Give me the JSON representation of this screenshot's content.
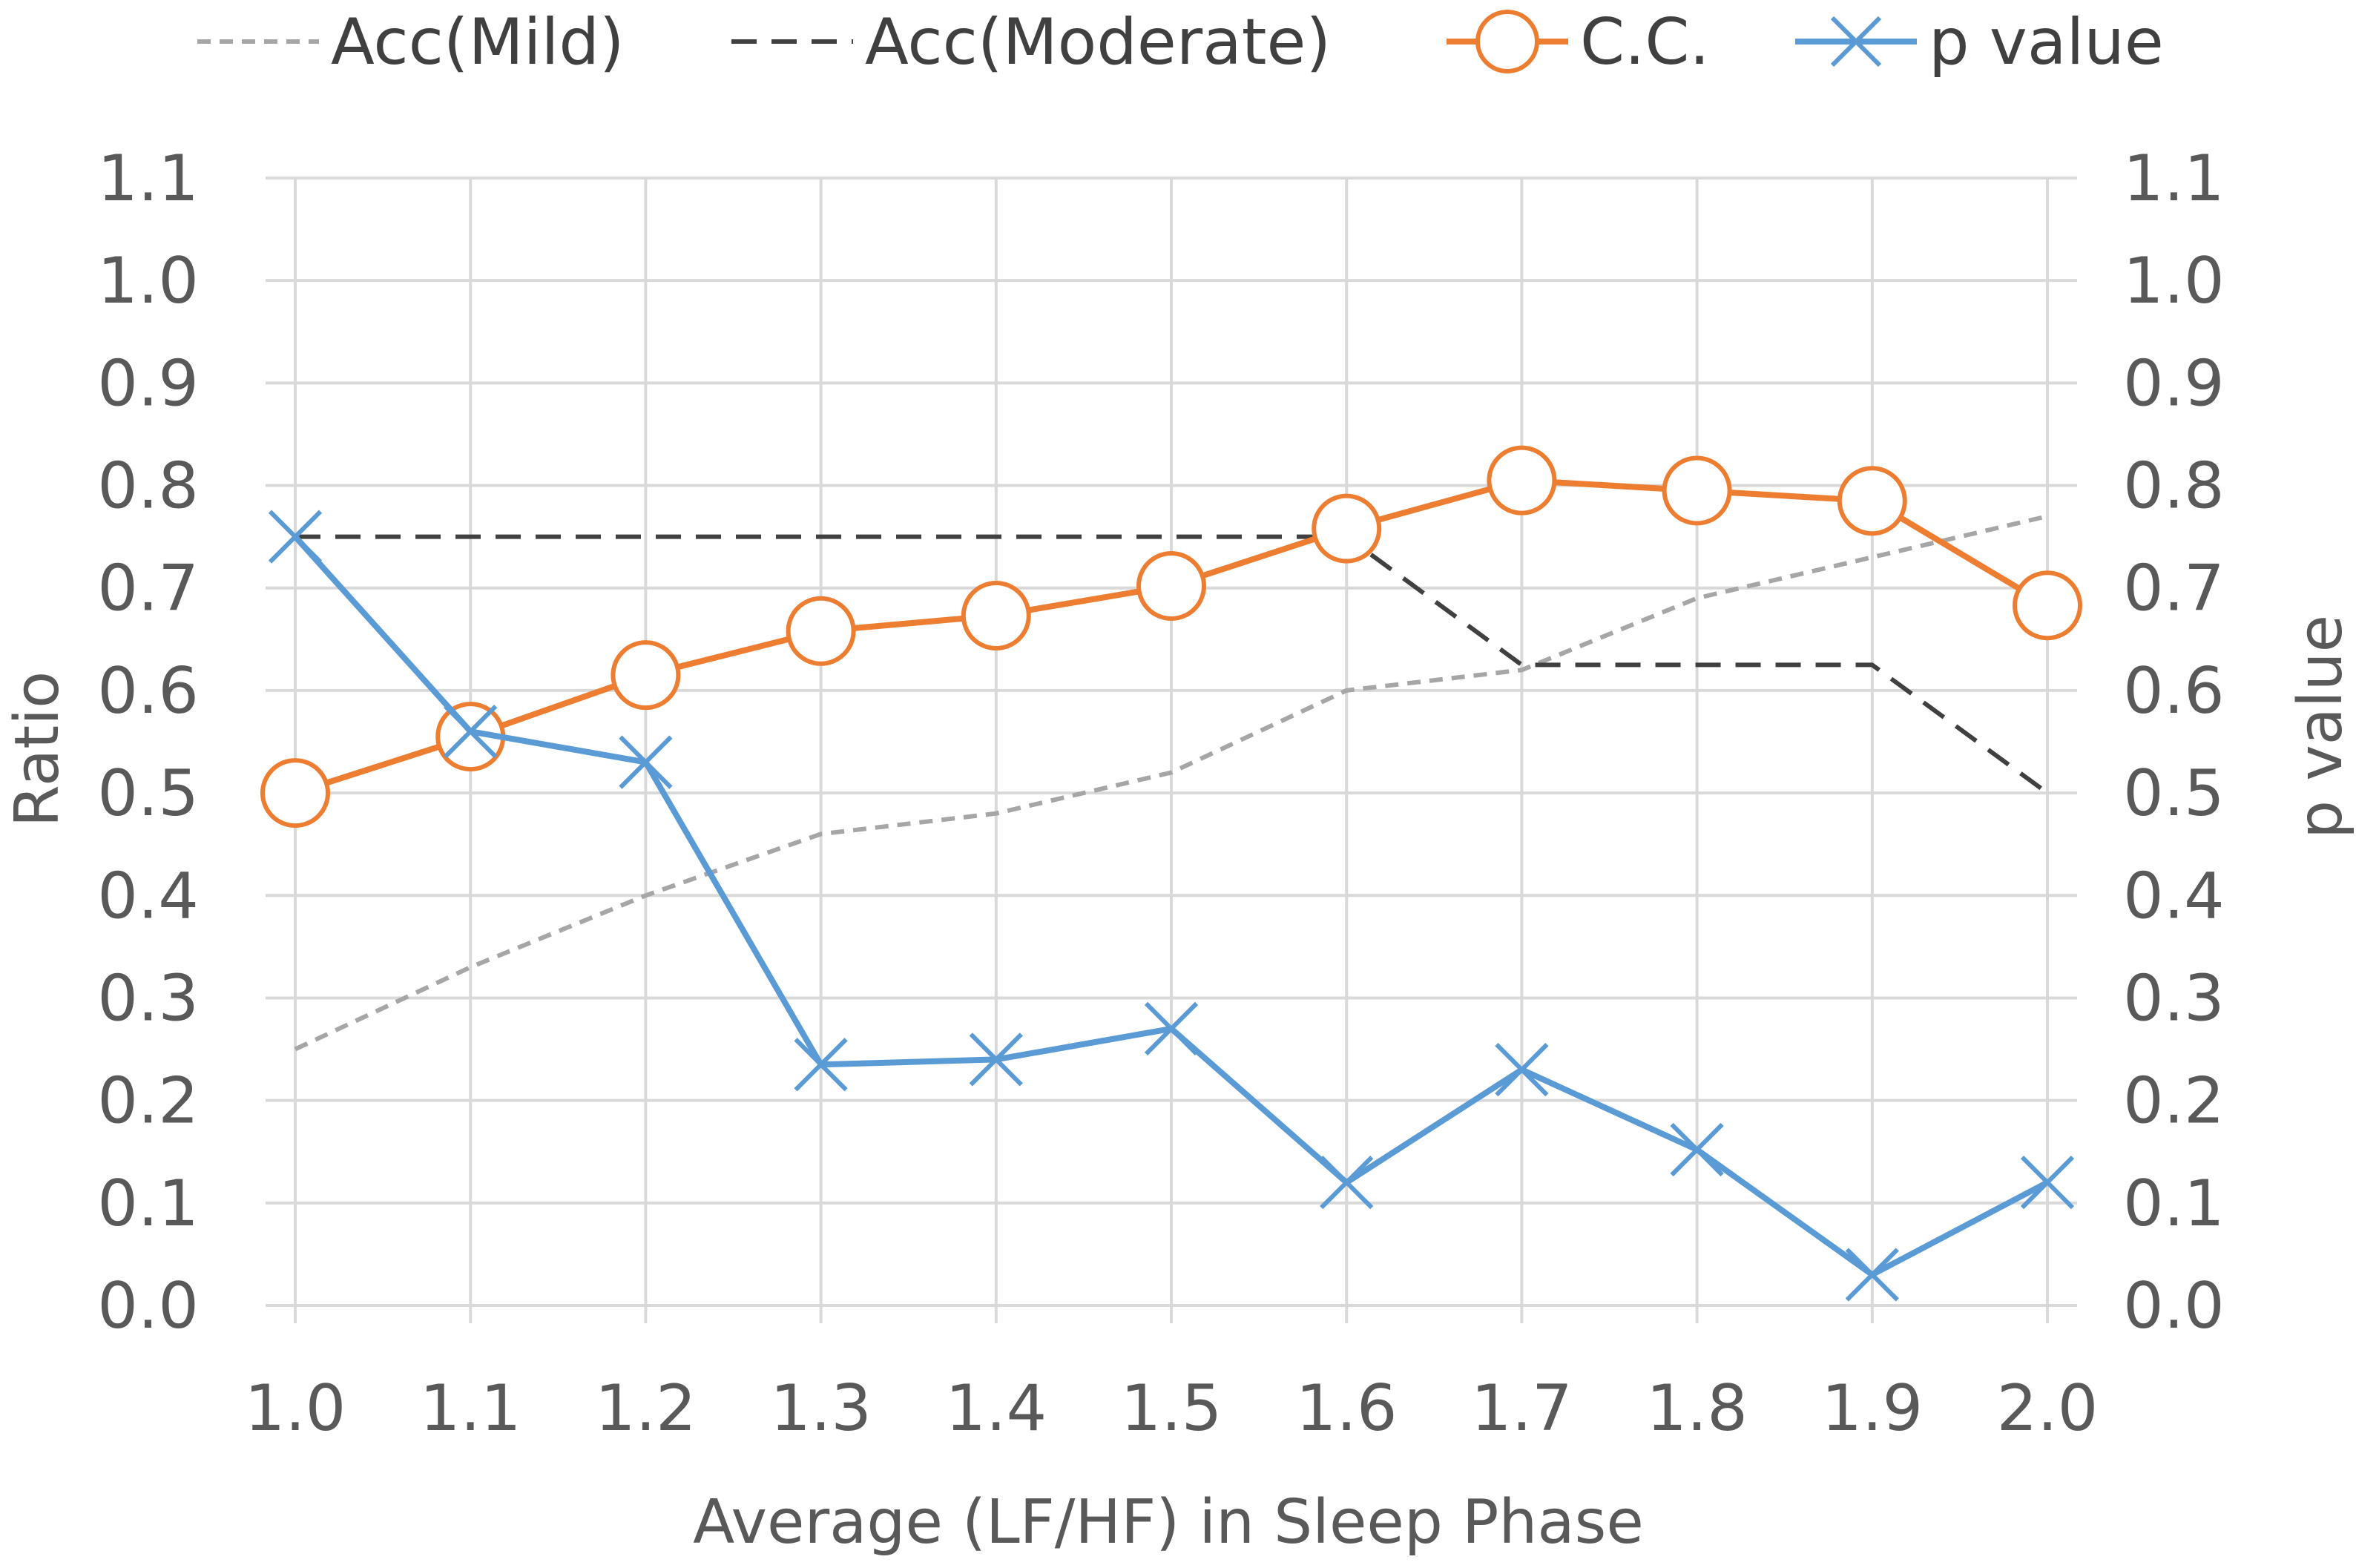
{
  "chart_data": {
    "type": "line",
    "title": "",
    "xlabel": "Average (LF/HF) in Sleep Phase",
    "ylabel": "Ratio",
    "y2label": "p value",
    "x": [
      1.0,
      1.1,
      1.2,
      1.3,
      1.4,
      1.5,
      1.6,
      1.7,
      1.8,
      1.9,
      2.0
    ],
    "x_tick_labels": [
      "1.0",
      "1.1",
      "1.2",
      "1.3",
      "1.4",
      "1.5",
      "1.6",
      "1.7",
      "1.8",
      "1.9",
      "2.0"
    ],
    "ylim": [
      0,
      1.1
    ],
    "y2lim": [
      0,
      1.1
    ],
    "y_ticks": [
      0.0,
      0.1,
      0.2,
      0.3,
      0.4,
      0.5,
      0.6,
      0.7,
      0.8,
      0.9,
      1.0,
      1.1
    ],
    "y_tick_labels": [
      "0.0",
      "0.1",
      "0.2",
      "0.3",
      "0.4",
      "0.5",
      "0.6",
      "0.7",
      "0.8",
      "0.9",
      "1.0",
      "1.1"
    ],
    "grid": true,
    "legend_position": "top",
    "series": [
      {
        "name": "Acc(Mild)",
        "axis": "left",
        "color": "#a6a6a6",
        "dash": "short",
        "marker": "none",
        "values": [
          0.25,
          0.33,
          0.4,
          0.46,
          0.48,
          0.52,
          0.6,
          0.62,
          0.69,
          0.73,
          0.77
        ]
      },
      {
        "name": "Acc(Moderate)",
        "axis": "left",
        "color": "#404040",
        "dash": "long",
        "marker": "none",
        "values": [
          0.75,
          0.75,
          0.75,
          0.75,
          0.75,
          0.75,
          0.75,
          0.625,
          0.625,
          0.625,
          0.5
        ]
      },
      {
        "name": "C.C.",
        "axis": "left",
        "color": "#ed7d31",
        "dash": "solid",
        "marker": "circle",
        "values": [
          0.5,
          0.555,
          0.615,
          0.658,
          0.673,
          0.702,
          0.758,
          0.805,
          0.795,
          0.785,
          0.683
        ]
      },
      {
        "name": "p value",
        "axis": "right",
        "color": "#5b9bd5",
        "dash": "solid",
        "marker": "x",
        "values": [
          0.75,
          0.56,
          0.53,
          0.235,
          0.24,
          0.27,
          0.12,
          0.23,
          0.152,
          0.03,
          0.12
        ]
      }
    ]
  }
}
